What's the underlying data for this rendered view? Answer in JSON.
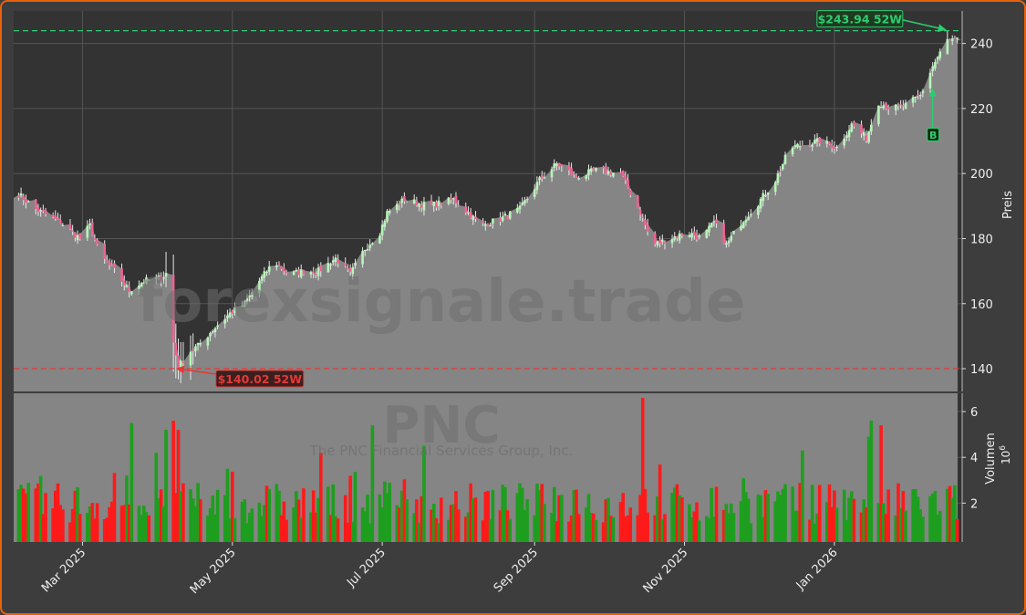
{
  "chart_data": {
    "type": "candlestick",
    "ticker": "PNC",
    "company": "The PNC Financial Services Group, Inc.",
    "watermark": "forexsignale.trade",
    "price_axis_label": "Preis",
    "volume_axis_label": "Volumen",
    "volume_unit_exponent": "6",
    "ylim_price": [
      133,
      250
    ],
    "ylim_volume": [
      0.3,
      6.8
    ],
    "price_ticks": [
      140,
      160,
      180,
      200,
      220,
      240
    ],
    "volume_ticks": [
      2,
      4,
      6
    ],
    "x_start": "2025-02-01",
    "x_end": "2026-02-22",
    "x_ticks": [
      {
        "label": "Mar 2025",
        "date": "2025-03-01"
      },
      {
        "label": "May 2025",
        "date": "2025-05-01"
      },
      {
        "label": "Jul 2025",
        "date": "2025-07-01"
      },
      {
        "label": "Sep 2025",
        "date": "2025-09-01"
      },
      {
        "label": "Nov 2025",
        "date": "2025-11-01"
      },
      {
        "label": "Jan 2026",
        "date": "2026-01-01"
      }
    ],
    "high_52w": {
      "value": 243.94,
      "label": "$243.94 52W",
      "color": "#2ecc71",
      "date": "2026-02-16"
    },
    "low_52w": {
      "value": 140.02,
      "label": "$140.02 52W",
      "color": "#e53935",
      "date": "2025-04-08"
    },
    "signal": {
      "label": "B",
      "date": "2026-02-10",
      "price": 212,
      "color": "#2ecc71"
    },
    "last_close": 241,
    "price_path": [
      [
        "2025-02-01",
        195
      ],
      [
        "2025-02-10",
        189
      ],
      [
        "2025-02-20",
        185
      ],
      [
        "2025-02-28",
        180
      ],
      [
        "2025-03-04",
        184
      ],
      [
        "2025-03-08",
        175
      ],
      [
        "2025-03-14",
        170
      ],
      [
        "2025-03-20",
        164
      ],
      [
        "2025-03-26",
        167
      ],
      [
        "2025-04-02",
        168
      ],
      [
        "2025-04-05",
        170
      ],
      [
        "2025-04-07",
        148
      ],
      [
        "2025-04-09",
        140.5
      ],
      [
        "2025-04-13",
        145
      ],
      [
        "2025-04-17",
        147
      ],
      [
        "2025-04-23",
        152
      ],
      [
        "2025-04-30",
        157
      ],
      [
        "2025-05-06",
        160
      ],
      [
        "2025-05-12",
        167
      ],
      [
        "2025-05-18",
        173
      ],
      [
        "2025-05-24",
        169
      ],
      [
        "2025-05-30",
        170
      ],
      [
        "2025-06-05",
        170
      ],
      [
        "2025-06-12",
        174
      ],
      [
        "2025-06-18",
        169
      ],
      [
        "2025-06-24",
        177
      ],
      [
        "2025-06-30",
        182
      ],
      [
        "2025-07-03",
        188
      ],
      [
        "2025-07-10",
        192
      ],
      [
        "2025-07-20",
        190
      ],
      [
        "2025-07-30",
        192
      ],
      [
        "2025-08-05",
        188
      ],
      [
        "2025-08-10",
        184
      ],
      [
        "2025-08-18",
        186
      ],
      [
        "2025-08-26",
        189
      ],
      [
        "2025-09-03",
        198
      ],
      [
        "2025-09-10",
        203
      ],
      [
        "2025-09-18",
        199
      ],
      [
        "2025-09-26",
        201
      ],
      [
        "2025-10-06",
        200
      ],
      [
        "2025-10-14",
        188
      ],
      [
        "2025-10-19",
        178
      ],
      [
        "2025-10-26",
        180
      ],
      [
        "2025-11-02",
        182
      ],
      [
        "2025-11-08",
        180
      ],
      [
        "2025-11-13",
        185
      ],
      [
        "2025-11-18",
        178
      ],
      [
        "2025-11-24",
        185
      ],
      [
        "2025-12-01",
        191
      ],
      [
        "2025-12-08",
        198
      ],
      [
        "2025-12-14",
        208
      ],
      [
        "2025-12-20",
        209
      ],
      [
        "2025-12-26",
        210
      ],
      [
        "2026-01-02",
        208
      ],
      [
        "2026-01-08",
        215
      ],
      [
        "2026-01-14",
        211
      ],
      [
        "2026-01-19",
        222
      ],
      [
        "2026-01-24",
        220
      ],
      [
        "2026-01-30",
        221
      ],
      [
        "2026-02-05",
        224
      ],
      [
        "2026-02-10",
        233
      ],
      [
        "2026-02-16",
        241
      ],
      [
        "2026-02-22",
        241
      ]
    ]
  }
}
